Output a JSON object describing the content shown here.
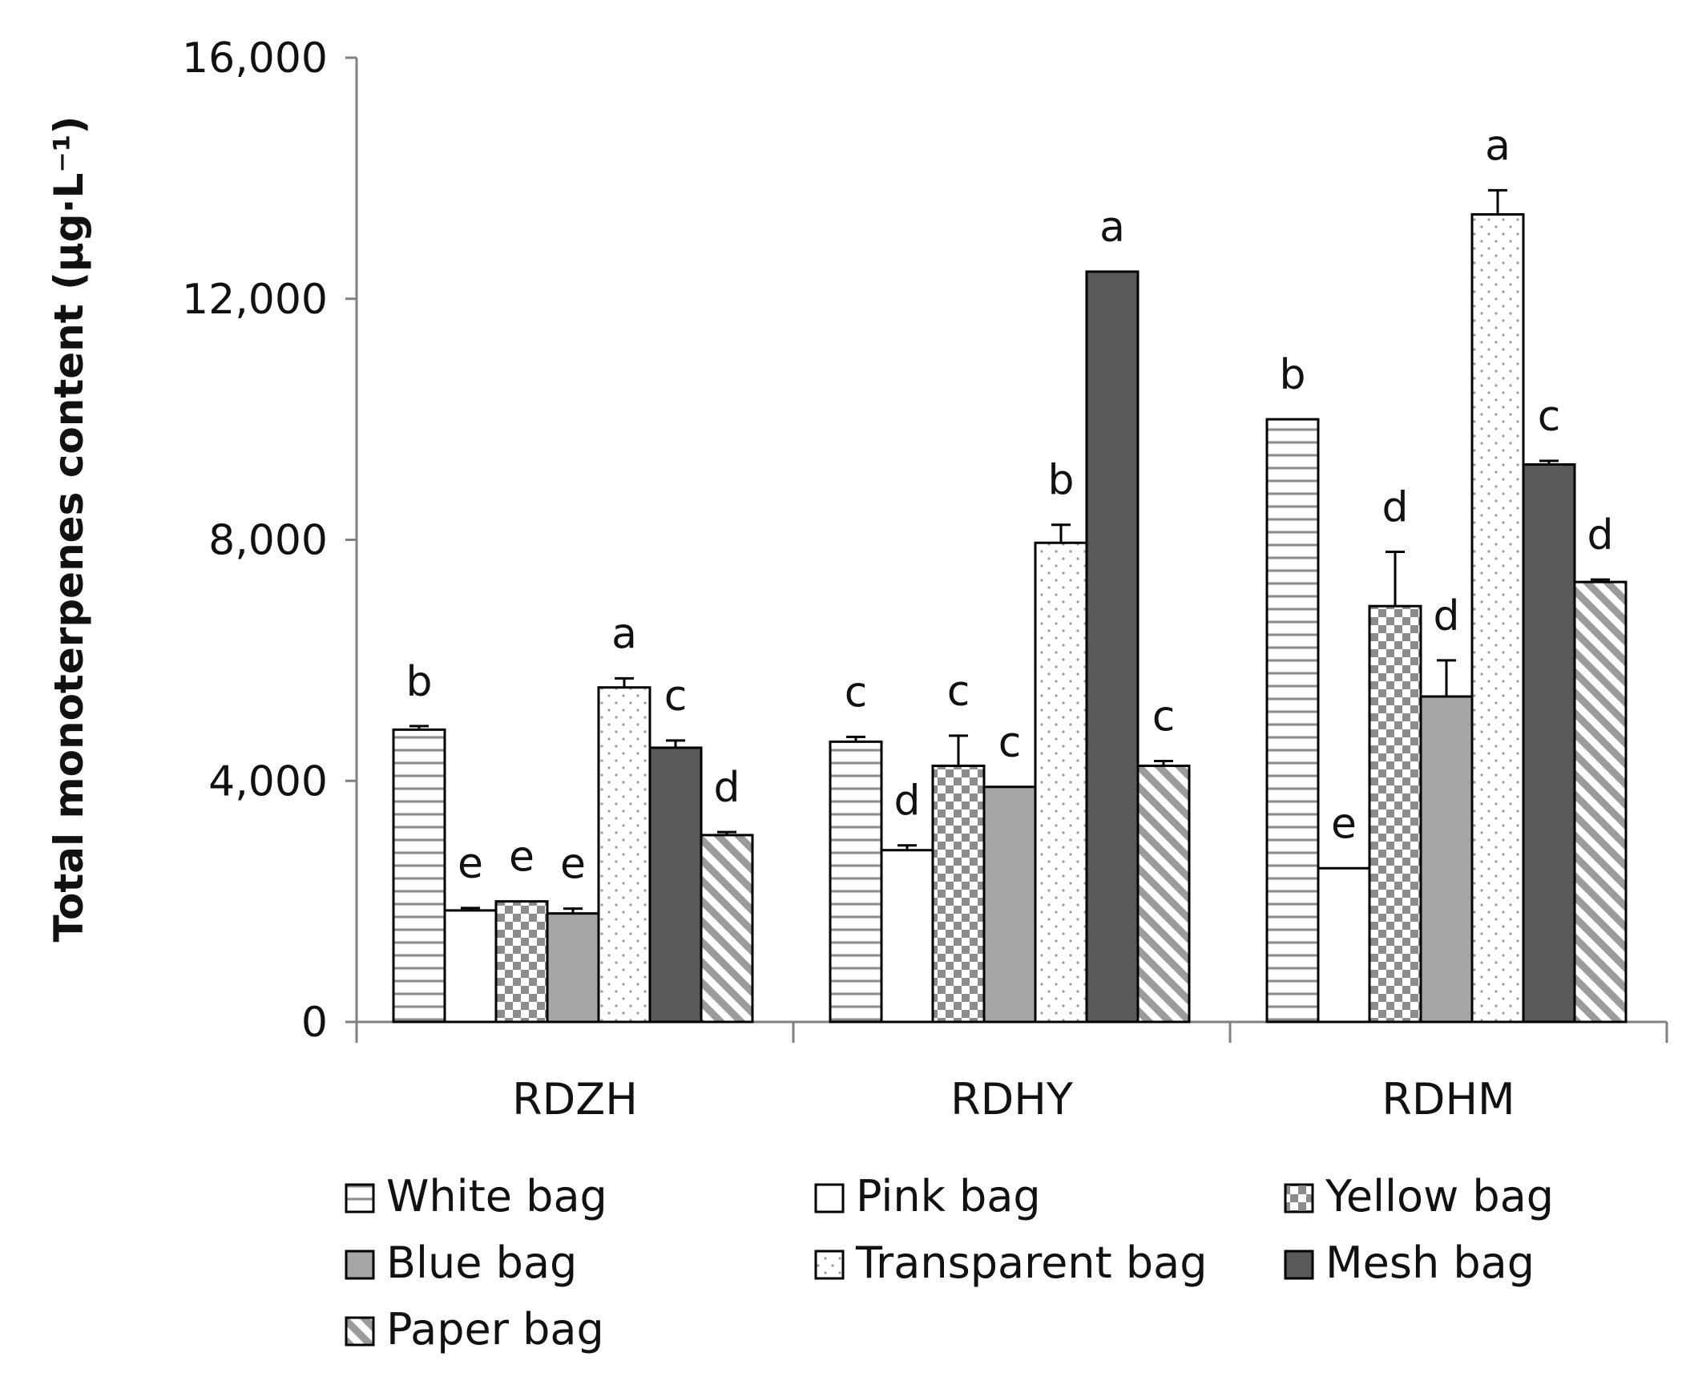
{
  "chart_data": {
    "type": "bar",
    "ylabel": "Total monoterpenes content  (µg·L⁻¹)",
    "xlabel": "",
    "ylim": [
      0,
      16000
    ],
    "yticks": [
      0,
      4000,
      8000,
      12000,
      16000
    ],
    "ytick_labels": [
      "0",
      "4,000",
      "8,000",
      "12,000",
      "16,000"
    ],
    "categories": [
      "RDZH",
      "RDHY",
      "RDHM"
    ],
    "legend_position": "bottom",
    "series": [
      {
        "name": "White bag",
        "pattern": "hstripes",
        "values": [
          4850,
          4650,
          10000
        ],
        "errors": [
          60,
          80,
          0
        ],
        "letters": [
          "b",
          "c",
          "b"
        ]
      },
      {
        "name": "Pink bag",
        "pattern": "plain",
        "values": [
          1850,
          2850,
          2550
        ],
        "errors": [
          40,
          80,
          0
        ],
        "letters": [
          "e",
          "d",
          "e"
        ]
      },
      {
        "name": "Yellow bag",
        "pattern": "checker",
        "values": [
          2000,
          4250,
          6900
        ],
        "errors": [
          0,
          500,
          900
        ],
        "letters": [
          "e",
          "c",
          "d"
        ]
      },
      {
        "name": "Blue bag",
        "pattern": "grey",
        "values": [
          1800,
          3900,
          5400
        ],
        "errors": [
          80,
          0,
          600
        ],
        "letters": [
          "e",
          "c",
          "d"
        ]
      },
      {
        "name": "Transparent bag",
        "pattern": "dots",
        "values": [
          5550,
          7950,
          13400
        ],
        "errors": [
          150,
          300,
          400
        ],
        "letters": [
          "a",
          "b",
          "a"
        ]
      },
      {
        "name": "Mesh bag",
        "pattern": "dark",
        "values": [
          4550,
          12450,
          9250
        ],
        "errors": [
          120,
          0,
          60
        ],
        "letters": [
          "c",
          "a",
          "c"
        ]
      },
      {
        "name": "Paper bag",
        "pattern": "diagonal",
        "values": [
          3100,
          4250,
          7300
        ],
        "errors": [
          50,
          80,
          40
        ],
        "letters": [
          "d",
          "c",
          "d"
        ]
      }
    ]
  },
  "colors": {
    "stroke": "#000000",
    "grey_fill": "#a6a6a6",
    "dark_fill": "#595959",
    "pattern_grey": "#9b9b9b",
    "axis": "#808080"
  }
}
